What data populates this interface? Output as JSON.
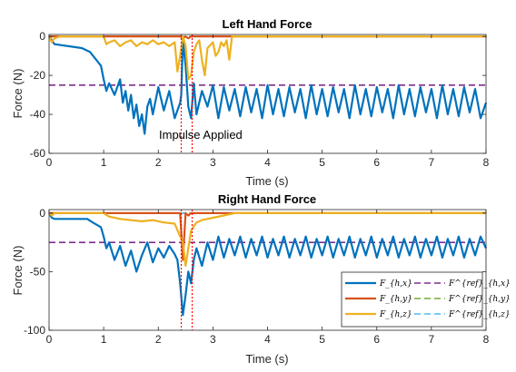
{
  "colors": {
    "Fhx": "#0072BD",
    "Fhy": "#D95319",
    "Fhz": "#EDB120",
    "ref_x": "#7E2F8E",
    "ref_y": "#77AC30",
    "ref_z": "#4DBEEE",
    "impulse": "#FF0000"
  },
  "legend": {
    "placement": "bottom-right of lower plot",
    "entries": [
      {
        "label": "F_{h,x}",
        "style": "solid"
      },
      {
        "label": "F_{h,y}",
        "style": "solid"
      },
      {
        "label": "F_{h,z}",
        "style": "solid"
      },
      {
        "label": "F^{ref}_{h,x}",
        "style": "dashed"
      },
      {
        "label": "F^{ref}_{h,y}",
        "style": "dashed"
      },
      {
        "label": "F^{ref}_{h,z}",
        "style": "dashed"
      }
    ]
  },
  "chart_data": [
    {
      "type": "line",
      "title": "Left Hand Force",
      "xlabel": "Time (s)",
      "ylabel": "Force (N)",
      "xlim": [
        0,
        8
      ],
      "ylim": [
        -60,
        1
      ],
      "xticks": [
        0,
        1,
        2,
        3,
        4,
        5,
        6,
        7,
        8
      ],
      "yticks": [
        0,
        -20,
        -40,
        -60
      ],
      "grid": false,
      "impulse_lines": [
        2.42,
        2.62
      ],
      "annotation": {
        "text": "Impulse Applied",
        "x": 2.0,
        "y": -50
      },
      "series": [
        {
          "name": "F_{h,x}",
          "key": "Fhx",
          "x": [
            0,
            0.05,
            0.1,
            0.6,
            0.75,
            0.95,
            1.0,
            1.05,
            1.1,
            1.2,
            1.3,
            1.35,
            1.4,
            1.45,
            1.5,
            1.55,
            1.6,
            1.65,
            1.7,
            1.75,
            1.8,
            1.85,
            1.9,
            2.0,
            2.1,
            2.2,
            2.3,
            2.4,
            2.42,
            2.45,
            2.5,
            2.55,
            2.6,
            2.65,
            2.7,
            2.8,
            2.9,
            3.0,
            3.1,
            3.2,
            3.3,
            3.4,
            3.5,
            3.6,
            3.7,
            3.8,
            3.9,
            4.0,
            4.1,
            4.2,
            4.3,
            4.4,
            4.5,
            4.6,
            4.7,
            4.8,
            4.9,
            5.0,
            5.1,
            5.2,
            5.3,
            5.4,
            5.5,
            5.6,
            5.7,
            5.8,
            5.9,
            6.0,
            6.1,
            6.2,
            6.3,
            6.4,
            6.5,
            6.6,
            6.7,
            6.8,
            6.9,
            7.0,
            7.1,
            7.2,
            7.3,
            7.4,
            7.5,
            7.6,
            7.7,
            7.8,
            7.9,
            8.0
          ],
          "values": [
            0,
            -2,
            -4,
            -6,
            -8,
            -15,
            -22,
            -28,
            -24,
            -30,
            -22,
            -34,
            -28,
            -38,
            -30,
            -42,
            -35,
            -46,
            -40,
            -50,
            -36,
            -32,
            -40,
            -26,
            -38,
            -28,
            -42,
            -34,
            -30,
            -2,
            -15,
            -36,
            -42,
            -24,
            -40,
            -28,
            -36,
            -25,
            -42,
            -26,
            -38,
            -27,
            -41,
            -26,
            -39,
            -27,
            -42,
            -25,
            -40,
            -27,
            -41,
            -26,
            -39,
            -27,
            -42,
            -25,
            -40,
            -27,
            -41,
            -26,
            -39,
            -27,
            -42,
            -25,
            -40,
            -27,
            -41,
            -26,
            -39,
            -27,
            -42,
            -25,
            -40,
            -27,
            -41,
            -26,
            -39,
            -27,
            -42,
            -25,
            -40,
            -27,
            -41,
            -26,
            -39,
            -27,
            -42,
            -34
          ]
        },
        {
          "name": "F_{h,y}",
          "key": "Fhy",
          "x": [
            0,
            2.4,
            2.45,
            2.5,
            2.55,
            2.6,
            8.0
          ],
          "values": [
            0,
            0,
            -1,
            0,
            -1,
            0,
            0
          ]
        },
        {
          "name": "F_{h,z}",
          "key": "Fhz",
          "x": [
            0,
            0.05,
            0.1,
            0.2,
            1.0,
            1.05,
            1.1,
            1.2,
            1.3,
            1.4,
            1.5,
            1.6,
            1.7,
            1.8,
            1.9,
            2.0,
            2.1,
            2.2,
            2.3,
            2.35,
            2.4,
            2.45,
            2.5,
            2.55,
            2.6,
            2.65,
            2.7,
            2.75,
            2.8,
            2.85,
            2.9,
            3.0,
            3.05,
            3.1,
            3.15,
            3.2,
            3.25,
            3.3,
            3.35,
            4.0,
            8.0
          ],
          "values": [
            0,
            -3,
            -1,
            0,
            0,
            -4,
            -3,
            -2,
            -5,
            -3,
            -2,
            -5,
            -3,
            -4,
            -2,
            -4,
            -3,
            -5,
            -3,
            -18,
            -10,
            0,
            -5,
            -22,
            -20,
            -8,
            -4,
            -2,
            -12,
            -20,
            -6,
            -3,
            -10,
            -8,
            -3,
            -5,
            -2,
            -12,
            0,
            0,
            0
          ]
        },
        {
          "name": "F^{ref}_{h,x}",
          "key": "ref_x",
          "x": [
            0,
            8
          ],
          "values": [
            -25,
            -25
          ]
        },
        {
          "name": "F^{ref}_{h,y}",
          "key": "ref_y",
          "x": [
            0,
            8
          ],
          "values": [
            0,
            0
          ]
        },
        {
          "name": "F^{ref}_{h,z}",
          "key": "ref_z",
          "x": [
            0,
            8
          ],
          "values": [
            0,
            0
          ]
        }
      ]
    },
    {
      "type": "line",
      "title": "Right Hand Force",
      "xlabel": "Time (s)",
      "ylabel": "Force (N)",
      "xlim": [
        0,
        8
      ],
      "ylim": [
        -100,
        3
      ],
      "xticks": [
        0,
        1,
        2,
        3,
        4,
        5,
        6,
        7,
        8
      ],
      "yticks": [
        0,
        -50,
        -100
      ],
      "grid": false,
      "impulse_lines": [
        2.42,
        2.62
      ],
      "series": [
        {
          "name": "F_{h,x}",
          "key": "Fhx",
          "x": [
            0,
            0.05,
            0.1,
            0.7,
            0.8,
            0.95,
            1.0,
            1.05,
            1.1,
            1.2,
            1.3,
            1.4,
            1.5,
            1.6,
            1.7,
            1.8,
            1.9,
            2.0,
            2.1,
            2.2,
            2.3,
            2.35,
            2.4,
            2.45,
            2.5,
            2.55,
            2.6,
            2.65,
            2.7,
            2.8,
            2.9,
            3.0,
            3.1,
            3.2,
            3.3,
            3.4,
            3.5,
            3.6,
            3.7,
            3.8,
            3.9,
            4.0,
            4.1,
            4.2,
            4.3,
            4.4,
            4.5,
            4.6,
            4.7,
            4.8,
            4.9,
            5.0,
            5.1,
            5.2,
            5.3,
            5.4,
            5.5,
            5.6,
            5.7,
            5.8,
            5.9,
            6.0,
            6.1,
            6.2,
            6.3,
            6.4,
            6.5,
            6.6,
            6.7,
            6.8,
            6.9,
            7.0,
            7.1,
            7.2,
            7.3,
            7.4,
            7.5,
            7.6,
            7.7,
            7.8,
            7.9,
            8.0
          ],
          "values": [
            0,
            -4,
            -5,
            -5,
            -8,
            -12,
            -20,
            -30,
            -25,
            -40,
            -28,
            -45,
            -32,
            -50,
            -36,
            -25,
            -42,
            -30,
            -38,
            -28,
            -35,
            -40,
            -60,
            -87,
            -70,
            -50,
            -60,
            -40,
            -30,
            -45,
            -25,
            -40,
            -20,
            -38,
            -22,
            -36,
            -20,
            -38,
            -22,
            -36,
            -20,
            -38,
            -22,
            -36,
            -20,
            -38,
            -22,
            -36,
            -20,
            -38,
            -22,
            -36,
            -20,
            -38,
            -22,
            -36,
            -20,
            -38,
            -22,
            -36,
            -20,
            -38,
            -22,
            -36,
            -20,
            -38,
            -22,
            -36,
            -20,
            -38,
            -22,
            -36,
            -20,
            -38,
            -22,
            -36,
            -20,
            -38,
            -22,
            -36,
            -20,
            -30
          ]
        },
        {
          "name": "F_{h,y}",
          "key": "Fhy",
          "x": [
            0,
            2.4,
            2.45,
            2.5,
            2.55,
            2.6,
            8.0
          ],
          "values": [
            0,
            0,
            -40,
            0,
            -2,
            0,
            0
          ]
        },
        {
          "name": "F_{h,z}",
          "key": "Fhz",
          "x": [
            0,
            0.05,
            0.1,
            1.0,
            1.1,
            1.3,
            1.5,
            1.7,
            1.9,
            2.1,
            2.3,
            2.4,
            2.45,
            2.5,
            2.55,
            2.6,
            2.7,
            2.8,
            3.0,
            3.2,
            3.4,
            8.0
          ],
          "values": [
            0,
            -2,
            0,
            0,
            -3,
            -5,
            -6,
            -7,
            -6,
            -8,
            -9,
            -20,
            -25,
            -45,
            -30,
            -15,
            -8,
            -6,
            -4,
            -2,
            0,
            0
          ]
        },
        {
          "name": "F^{ref}_{h,x}",
          "key": "ref_x",
          "x": [
            0,
            8
          ],
          "values": [
            -25,
            -25
          ]
        },
        {
          "name": "F^{ref}_{h,y}",
          "key": "ref_y",
          "x": [
            0,
            8
          ],
          "values": [
            0,
            0
          ]
        },
        {
          "name": "F^{ref}_{h,z}",
          "key": "ref_z",
          "x": [
            0,
            8
          ],
          "values": [
            0,
            0
          ]
        }
      ]
    }
  ]
}
